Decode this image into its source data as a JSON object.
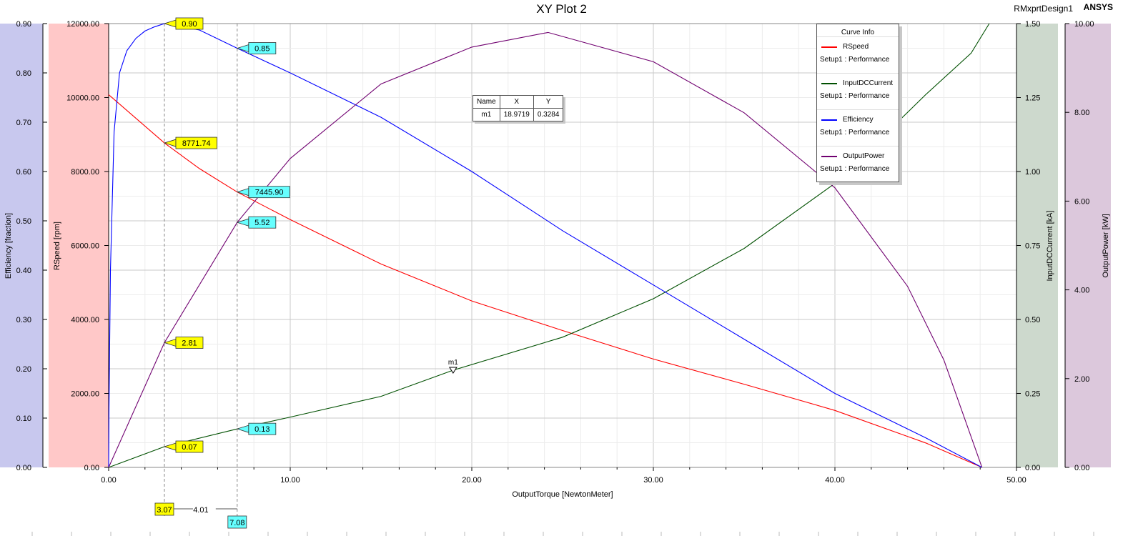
{
  "title": "XY Plot 2",
  "design_name": "RMxprtDesign1",
  "brand": "ANSYS",
  "legend": {
    "header": "Curve Info",
    "entries": [
      {
        "name": "RSpeed",
        "sub": "Setup1 : Performance",
        "color": "#ff0000"
      },
      {
        "name": "InputDCCurrent",
        "sub": "Setup1 : Performance",
        "color": "#005000"
      },
      {
        "name": "Efficiency",
        "sub": "Setup1 : Performance",
        "color": "#0000ff"
      },
      {
        "name": "OutputPower",
        "sub": "Setup1 : Performance",
        "color": "#700070"
      }
    ]
  },
  "marker_table": {
    "headers": [
      "Name",
      "X",
      "Y"
    ],
    "rows": [
      [
        "m1",
        "18.9719",
        "0.3284"
      ]
    ]
  },
  "colors": {
    "efficiency_band": "#c8c8ee",
    "rspeed_band": "#ffc8c8",
    "current_band": "#cdd9cd",
    "power_band": "#dcc8dc",
    "marker_yellow": "#ffff00",
    "marker_cyan": "#66ffff"
  },
  "chart_data": {
    "type": "line",
    "xlabel": "OutputTorque [NewtonMeter]",
    "xlim": [
      0,
      50
    ],
    "x_ticks": [
      "0.00",
      "10.00",
      "20.00",
      "30.00",
      "40.00",
      "50.00"
    ],
    "axes": {
      "efficiency": {
        "label": "Efficiency [fraction]",
        "range": [
          0,
          0.9
        ],
        "ticks": [
          "0.00",
          "0.10",
          "0.20",
          "0.30",
          "0.40",
          "0.50",
          "0.60",
          "0.70",
          "0.80",
          "0.90"
        ]
      },
      "rspeed": {
        "label": "RSpeed [rpm]",
        "range": [
          0,
          12000
        ],
        "ticks": [
          "0.00",
          "2000.00",
          "4000.00",
          "6000.00",
          "8000.00",
          "10000.00",
          "12000.00"
        ]
      },
      "current": {
        "label": "InputDCCurrent [kA]",
        "range": [
          0,
          1.5
        ],
        "ticks": [
          "0.00",
          "0.25",
          "0.50",
          "0.75",
          "1.00",
          "1.25",
          "1.50"
        ]
      },
      "power": {
        "label": "OutputPower [kW]",
        "range": [
          0,
          10
        ],
        "ticks": [
          "0.00",
          "2.00",
          "4.00",
          "6.00",
          "8.00",
          "10.00"
        ]
      }
    },
    "series": [
      {
        "name": "RSpeed",
        "axis": "rspeed",
        "color": "#ff0000",
        "x": [
          0,
          3.07,
          5,
          7.08,
          10,
          15,
          20,
          25,
          30,
          35,
          40,
          45,
          48.1
        ],
        "y": [
          10080,
          8771.74,
          8080,
          7445.9,
          6700,
          5500,
          4500,
          3700,
          2930,
          2250,
          1540,
          660,
          0
        ]
      },
      {
        "name": "InputDCCurrent",
        "axis": "current",
        "color": "#005000",
        "x": [
          0,
          3.07,
          7.08,
          10,
          15,
          18.9719,
          25,
          30,
          35,
          40,
          45,
          47.5,
          48.5
        ],
        "y": [
          0,
          0.07,
          0.13,
          0.17,
          0.24,
          0.3284,
          0.44,
          0.57,
          0.74,
          0.96,
          1.26,
          1.4,
          1.5
        ]
      },
      {
        "name": "Efficiency",
        "axis": "efficiency",
        "color": "#0000ff",
        "x": [
          0,
          0.02,
          0.1,
          0.3,
          0.6,
          1.0,
          1.5,
          2.0,
          2.5,
          3.07,
          5,
          7.08,
          10,
          15,
          20,
          25,
          30,
          35,
          40,
          45,
          48.1
        ],
        "y": [
          0,
          0.12,
          0.4,
          0.68,
          0.8,
          0.845,
          0.87,
          0.885,
          0.893,
          0.9,
          0.887,
          0.85,
          0.8,
          0.71,
          0.6,
          0.48,
          0.37,
          0.26,
          0.15,
          0.06,
          0
        ]
      },
      {
        "name": "OutputPower",
        "axis": "power",
        "color": "#700070",
        "x": [
          0,
          3.07,
          7.08,
          10,
          15,
          20,
          24.2,
          30,
          35,
          40,
          44,
          46,
          48.1
        ],
        "y": [
          0,
          2.81,
          5.52,
          6.96,
          8.64,
          9.47,
          9.8,
          9.14,
          7.99,
          6.3,
          4.08,
          2.42,
          0
        ]
      }
    ],
    "cursor_lines": [
      {
        "x": 3.07,
        "label": "3.07"
      },
      {
        "x": 7.08,
        "label": "7.08"
      }
    ],
    "delta_label": "4.01",
    "markers": [
      {
        "name": "m1",
        "x": 18.9719,
        "y": 0.3284,
        "axis": "current"
      }
    ],
    "point_labels": [
      {
        "series": "Efficiency",
        "x": 3.07,
        "text": "0.90",
        "color": "yellow"
      },
      {
        "series": "RSpeed",
        "x": 3.07,
        "text": "8771.74",
        "color": "yellow"
      },
      {
        "series": "OutputPower",
        "x": 3.07,
        "text": "2.81",
        "color": "yellow"
      },
      {
        "series": "InputDCCurrent",
        "x": 3.07,
        "text": "0.07",
        "color": "yellow"
      },
      {
        "series": "Efficiency",
        "x": 7.08,
        "text": "0.85",
        "color": "cyan"
      },
      {
        "series": "RSpeed",
        "x": 7.08,
        "text": "7445.90",
        "color": "cyan"
      },
      {
        "series": "OutputPower",
        "x": 7.08,
        "text": "5.52",
        "color": "cyan"
      },
      {
        "series": "InputDCCurrent",
        "x": 7.08,
        "text": "0.13",
        "color": "cyan"
      }
    ]
  }
}
